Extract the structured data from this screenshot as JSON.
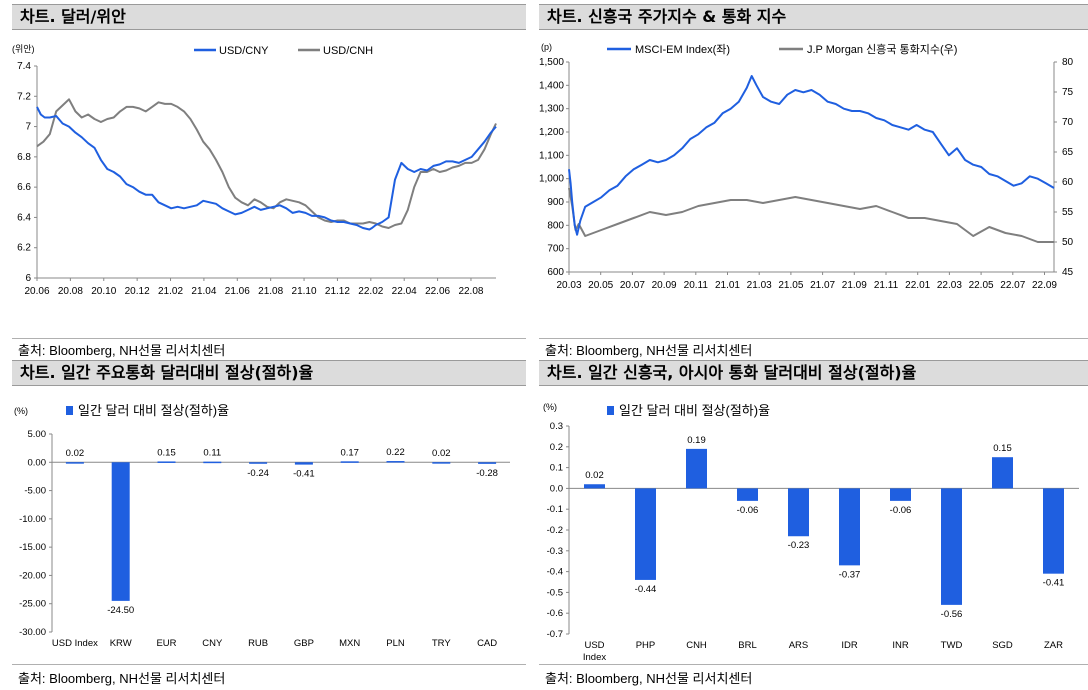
{
  "chart_data": [
    {
      "id": "fx_cny",
      "type": "line",
      "title": "차트. 달러/위안",
      "unit_label": "(위안)",
      "source": "출처: Bloomberg, NH선물 리서치센터",
      "x_ticks": [
        "20.06",
        "20.08",
        "20.10",
        "20.12",
        "21.02",
        "21.04",
        "21.06",
        "21.08",
        "21.10",
        "21.12",
        "22.02",
        "22.04",
        "22.06",
        "22.08"
      ],
      "ylim": [
        6,
        7.4
      ],
      "y_ticks": [
        "6",
        "6.2",
        "6.4",
        "6.6",
        "6.8",
        "7",
        "7.2",
        "7.4"
      ],
      "legend_position": "top",
      "colors": {
        "USD/CNY": "#1f5fe0",
        "USD/CNH": "#7f7f7f"
      },
      "series": [
        {
          "name": "USD/CNY",
          "x": [
            0,
            0.3,
            0.6,
            1,
            1.5,
            2,
            2.5,
            3,
            3.5,
            4,
            4.5,
            5,
            5.5,
            6,
            6.5,
            7,
            7.5,
            8,
            8.5,
            9,
            9.5,
            10,
            10.5,
            11,
            11.5,
            12,
            12.5,
            13,
            13.5,
            14,
            14.5,
            15,
            15.5,
            16,
            16.5,
            17,
            17.5,
            18,
            18.5,
            19,
            19.5,
            20,
            20.5,
            21,
            21.5,
            22,
            22.5,
            23,
            23.5,
            24,
            24.5,
            25,
            25.5,
            26,
            26.2,
            26.5,
            27,
            27.5,
            28,
            28.5,
            29,
            29.5,
            30,
            30.5,
            31,
            31.5,
            32,
            32.5,
            33,
            33.5,
            34,
            34.5,
            35,
            35.5,
            35.9
          ],
          "y": [
            7.13,
            7.08,
            7.06,
            7.06,
            7.07,
            7.02,
            7.0,
            6.96,
            6.93,
            6.89,
            6.86,
            6.78,
            6.72,
            6.7,
            6.67,
            6.62,
            6.6,
            6.57,
            6.55,
            6.55,
            6.5,
            6.48,
            6.46,
            6.47,
            6.46,
            6.47,
            6.48,
            6.51,
            6.5,
            6.49,
            6.46,
            6.44,
            6.42,
            6.43,
            6.45,
            6.47,
            6.45,
            6.46,
            6.47,
            6.48,
            6.46,
            6.43,
            6.44,
            6.43,
            6.41,
            6.41,
            6.4,
            6.38,
            6.37,
            6.37,
            6.36,
            6.35,
            6.33,
            6.32,
            6.33,
            6.35,
            6.37,
            6.4,
            6.65,
            6.76,
            6.72,
            6.7,
            6.72,
            6.71,
            6.74,
            6.75,
            6.77,
            6.77,
            6.76,
            6.78,
            6.8,
            6.85,
            6.9,
            6.96,
            7.0
          ]
        },
        {
          "name": "USD/CNH",
          "x": [
            0,
            0.5,
            1,
            1.5,
            2,
            2.5,
            3,
            3.5,
            4,
            4.5,
            5,
            5.5,
            6,
            6.5,
            7,
            7.5,
            8,
            8.5,
            9,
            9.5,
            10,
            10.5,
            11,
            11.5,
            12,
            12.5,
            13,
            13.5,
            14,
            14.5,
            15,
            15.5,
            16,
            16.5,
            17,
            17.5,
            18,
            18.5,
            19,
            19.5,
            20,
            20.5,
            21,
            21.5,
            22,
            22.5,
            23,
            23.5,
            24,
            24.5,
            25,
            25.5,
            26,
            26.5,
            27,
            27.5,
            28,
            28.5,
            29,
            29.5,
            30,
            30.5,
            31,
            31.5,
            32,
            32.5,
            33,
            33.5,
            34,
            34.5,
            35,
            35.5,
            35.9
          ],
          "y": [
            6.87,
            6.9,
            6.95,
            7.1,
            7.14,
            7.18,
            7.1,
            7.06,
            7.08,
            7.05,
            7.03,
            7.05,
            7.06,
            7.1,
            7.13,
            7.13,
            7.12,
            7.1,
            7.13,
            7.16,
            7.15,
            7.15,
            7.13,
            7.1,
            7.05,
            6.98,
            6.9,
            6.85,
            6.78,
            6.7,
            6.6,
            6.53,
            6.5,
            6.48,
            6.52,
            6.5,
            6.47,
            6.46,
            6.5,
            6.52,
            6.51,
            6.5,
            6.48,
            6.44,
            6.4,
            6.38,
            6.37,
            6.38,
            6.38,
            6.36,
            6.36,
            6.36,
            6.37,
            6.36,
            6.34,
            6.33,
            6.35,
            6.36,
            6.45,
            6.6,
            6.7,
            6.7,
            6.72,
            6.7,
            6.71,
            6.73,
            6.74,
            6.76,
            6.76,
            6.78,
            6.85,
            6.95,
            7.02
          ]
        }
      ]
    },
    {
      "id": "em_index",
      "type": "line",
      "title": "차트. 신흥국 주가지수 & 통화 지수",
      "unit_label": "(p)",
      "source": "출처: Bloomberg, NH선물 리서치센터",
      "x_ticks": [
        "20.03",
        "20.05",
        "20.07",
        "20.09",
        "20.11",
        "21.01",
        "21.03",
        "21.05",
        "21.07",
        "21.09",
        "21.11",
        "22.01",
        "22.03",
        "22.05",
        "22.07",
        "22.09"
      ],
      "ylim_left": [
        600,
        1500
      ],
      "y_ticks_left": [
        "600",
        "700",
        "800",
        "900",
        "1,000",
        "1,100",
        "1,200",
        "1,300",
        "1,400",
        "1,500"
      ],
      "ylim_right": [
        45,
        80
      ],
      "y_ticks_right": [
        "45",
        "50",
        "55",
        "60",
        "65",
        "70",
        "75",
        "80"
      ],
      "legend_position": "top",
      "colors": {
        "MSCI-EM Index(좌)": "#1f5fe0",
        "J.P Morgan 신흥국 통화지수(우)": "#7f7f7f"
      },
      "series": [
        {
          "name": "MSCI-EM Index(좌)",
          "axis": "left",
          "x": [
            0,
            0.1,
            0.2,
            0.35,
            0.5,
            0.7,
            1,
            1.5,
            2,
            2.5,
            3,
            3.5,
            4,
            4.5,
            5,
            5.5,
            6,
            6.5,
            7,
            7.5,
            8,
            8.5,
            9,
            9.5,
            10,
            10.5,
            11,
            11.3,
            11.6,
            12,
            12.5,
            13,
            13.5,
            14,
            14.5,
            15,
            15.5,
            16,
            16.5,
            17,
            17.5,
            18,
            18.5,
            19,
            19.5,
            20,
            20.5,
            21,
            21.5,
            22,
            22.5,
            23,
            23.5,
            24,
            24.5,
            25,
            25.5,
            26,
            26.5,
            27,
            27.5,
            28,
            28.5,
            29,
            29.5,
            30
          ],
          "y": [
            1040,
            980,
            900,
            800,
            760,
            820,
            880,
            900,
            920,
            950,
            970,
            1010,
            1040,
            1060,
            1080,
            1070,
            1080,
            1100,
            1130,
            1170,
            1190,
            1220,
            1240,
            1280,
            1300,
            1330,
            1390,
            1440,
            1400,
            1350,
            1330,
            1320,
            1360,
            1380,
            1370,
            1380,
            1360,
            1330,
            1320,
            1300,
            1290,
            1290,
            1280,
            1260,
            1250,
            1230,
            1220,
            1210,
            1230,
            1210,
            1200,
            1150,
            1100,
            1130,
            1080,
            1060,
            1050,
            1020,
            1010,
            990,
            970,
            980,
            1010,
            1000,
            980,
            960
          ]
        },
        {
          "name": "J.P Morgan 신흥국 통화지수(우)",
          "axis": "right",
          "x": [
            0,
            0.2,
            0.4,
            0.6,
            1,
            2,
            3,
            4,
            5,
            6,
            7,
            8,
            9,
            10,
            11,
            12,
            13,
            14,
            15,
            16,
            17,
            18,
            19,
            20,
            21,
            22,
            23,
            24,
            25,
            26,
            27,
            28,
            29,
            30
          ],
          "y": [
            59,
            56,
            52,
            53,
            51,
            52,
            53,
            54,
            55,
            54.5,
            55,
            56,
            56.5,
            57,
            57,
            56.5,
            57,
            57.5,
            57,
            56.5,
            56,
            55.5,
            56,
            55,
            54,
            54,
            53.5,
            53,
            51,
            52.5,
            51.5,
            51,
            50,
            50
          ]
        }
      ]
    },
    {
      "id": "major_fx_change",
      "type": "bar",
      "title": "차트. 일간 주요통화 달러대비 절상(절하)율",
      "unit_label": "(%)",
      "legend": "일간 달러 대비 절상(절하)율",
      "legend_position": "top-left",
      "source": "출처: Bloomberg, NH선물 리서치센터",
      "color": "#1f5fe0",
      "categories": [
        "USD Index",
        "KRW",
        "EUR",
        "CNY",
        "RUB",
        "GBP",
        "MXN",
        "PLN",
        "TRY",
        "CAD"
      ],
      "values": [
        0.02,
        -24.5,
        0.15,
        0.11,
        -0.24,
        -0.41,
        0.17,
        0.22,
        0.02,
        -0.28
      ],
      "value_labels": [
        "0.02",
        "-24.50",
        "0.15",
        "0.11",
        "-0.24",
        "-0.41",
        "0.17",
        "0.22",
        "0.02",
        "-0.28"
      ],
      "ylim": [
        -30,
        5
      ],
      "y_ticks": [
        "5.00",
        "0.00",
        "-5.00",
        "-10.00",
        "-15.00",
        "-20.00",
        "-25.00",
        "-30.00"
      ]
    },
    {
      "id": "em_asia_fx_change",
      "type": "bar",
      "title": "차트. 일간 신흥국, 아시아 통화 달러대비 절상(절하)율",
      "unit_label": "(%)",
      "legend": "일간 달러 대비 절상(절하)율",
      "legend_position": "top-left",
      "source": "출처: Bloomberg, NH선물 리서치센터",
      "color": "#1f5fe0",
      "categories": [
        "USD Index",
        "PHP",
        "CNH",
        "BRL",
        "ARS",
        "IDR",
        "INR",
        "TWD",
        "SGD",
        "ZAR"
      ],
      "values": [
        0.02,
        -0.44,
        0.19,
        -0.06,
        -0.23,
        -0.37,
        -0.06,
        -0.56,
        0.15,
        -0.41
      ],
      "value_labels": [
        "0.02",
        "-0.44",
        "0.19",
        "-0.06",
        "-0.23",
        "-0.37",
        "-0.06",
        "-0.56",
        "0.15",
        "-0.41"
      ],
      "ylim": [
        -0.7,
        0.3
      ],
      "y_ticks": [
        "0.3",
        "0.2",
        "0.1",
        "0.0",
        "-0.1",
        "-0.2",
        "-0.3",
        "-0.4",
        "-0.5",
        "-0.6",
        "-0.7"
      ]
    }
  ]
}
